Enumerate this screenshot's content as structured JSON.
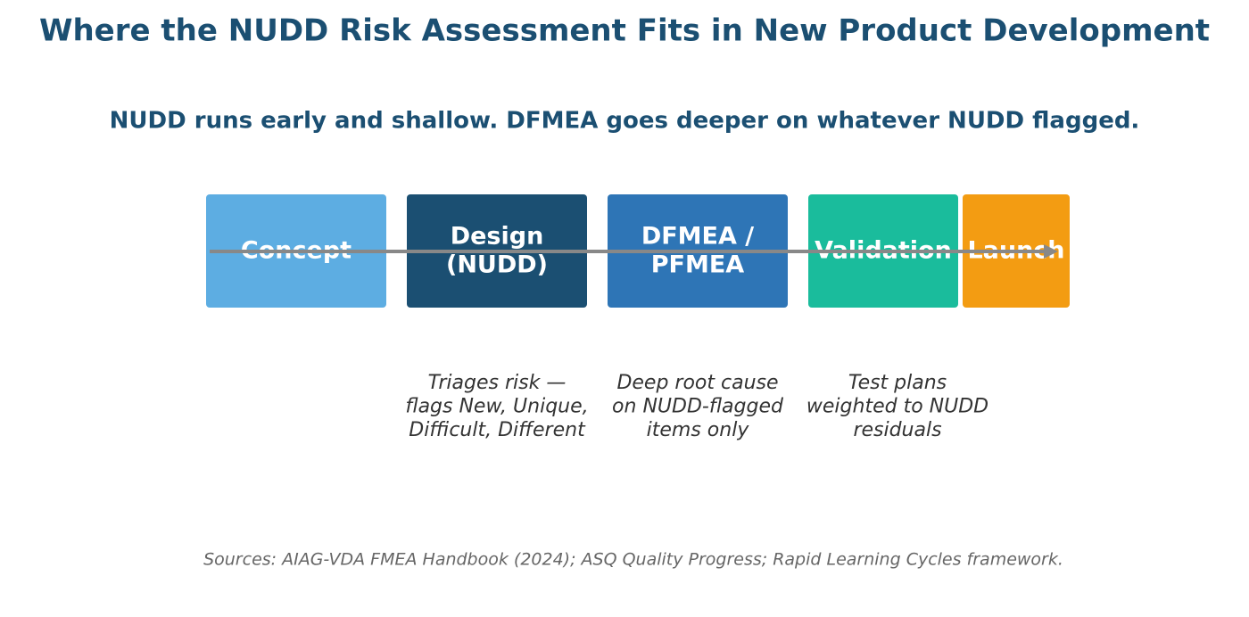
{
  "header": {
    "title": "Where the NUDD Risk Assessment Fits in New Product Development",
    "subtitle": "NUDD runs early and shallow. DFMEA goes deeper on whatever NUDD flagged."
  },
  "stages": [
    {
      "lines": [
        "Concept"
      ]
    },
    {
      "lines": [
        "Design",
        "(NUDD)"
      ]
    },
    {
      "lines": [
        "DFMEA /",
        "PFMEA"
      ]
    },
    {
      "lines": [
        "Validation"
      ]
    },
    {
      "lines": [
        "Launch"
      ]
    }
  ],
  "notes": [
    {
      "lines": [
        "Triages risk —",
        "flags New, Unique,",
        "Difficult, Different"
      ]
    },
    {
      "lines": [
        "Deep root cause",
        "on NUDD-flagged",
        "items only"
      ]
    },
    {
      "lines": [
        "Test plans",
        "weighted to NUDD",
        "residuals"
      ]
    }
  ],
  "footer": {
    "sources": "Sources: AIAG-VDA FMEA Handbook (2024); ASQ Quality Progress; Rapid Learning Cycles framework."
  }
}
